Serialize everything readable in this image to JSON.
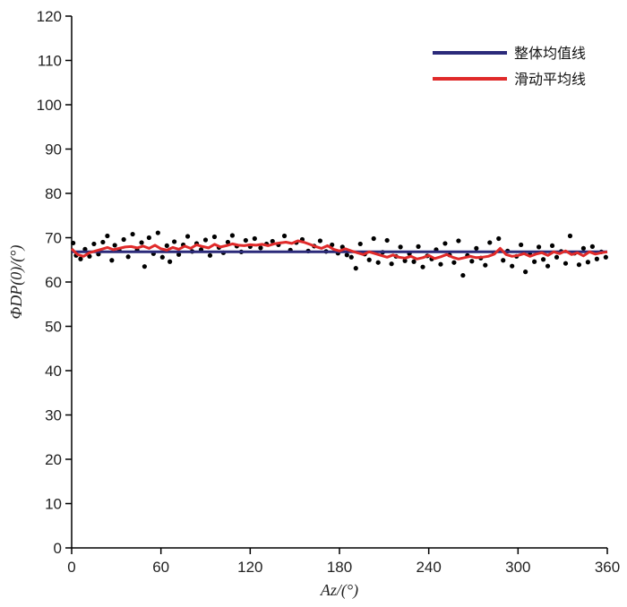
{
  "chart_data": {
    "type": "scatter",
    "title": "",
    "xlabel": "Az/(°)",
    "ylabel": "ΦDP(0)/(°)",
    "xlim": [
      0,
      360
    ],
    "ylim": [
      0,
      120
    ],
    "x_ticks": [
      0,
      60,
      120,
      180,
      240,
      300,
      360
    ],
    "y_ticks": [
      0,
      10,
      20,
      30,
      40,
      50,
      60,
      70,
      80,
      90,
      100,
      110,
      120
    ],
    "grid": false,
    "legend_position": "top-right",
    "colors": {
      "mean": "#2b2a7a",
      "moving": "#e02a2a",
      "points": "#000000"
    },
    "series": [
      {
        "name": "整体均值线",
        "kind": "line",
        "x": [
          0,
          360
        ],
        "y": [
          66.8,
          66.8
        ]
      },
      {
        "name": "滑动平均线",
        "kind": "line",
        "x": [
          0,
          4,
          8,
          12,
          16,
          20,
          24,
          28,
          32,
          36,
          40,
          44,
          48,
          52,
          56,
          60,
          64,
          68,
          72,
          76,
          80,
          84,
          88,
          92,
          96,
          100,
          104,
          108,
          112,
          116,
          120,
          124,
          128,
          132,
          136,
          140,
          144,
          148,
          152,
          156,
          160,
          164,
          168,
          172,
          176,
          180,
          184,
          188,
          192,
          196,
          200,
          204,
          208,
          212,
          216,
          220,
          224,
          228,
          232,
          236,
          240,
          244,
          248,
          252,
          256,
          260,
          264,
          268,
          272,
          276,
          280,
          284,
          288,
          292,
          296,
          300,
          304,
          308,
          312,
          316,
          320,
          324,
          328,
          332,
          336,
          340,
          344,
          348,
          352,
          356,
          360
        ],
        "y": [
          67.5,
          66.2,
          65.8,
          66.6,
          67.0,
          67.4,
          67.8,
          67.3,
          67.6,
          67.9,
          68.0,
          67.7,
          68.1,
          67.6,
          68.3,
          67.5,
          67.2,
          67.8,
          67.4,
          68.1,
          67.6,
          68.4,
          68.0,
          67.7,
          68.5,
          67.9,
          68.2,
          68.6,
          68.3,
          68.2,
          68.4,
          68.3,
          68.5,
          68.2,
          68.6,
          68.8,
          69.0,
          68.7,
          69.3,
          69.0,
          68.5,
          68.0,
          67.6,
          68.2,
          67.4,
          67.0,
          67.5,
          67.0,
          66.6,
          66.2,
          66.8,
          66.4,
          66.0,
          65.6,
          66.1,
          65.6,
          65.4,
          65.8,
          65.2,
          65.5,
          66.0,
          65.3,
          65.7,
          66.2,
          65.6,
          65.2,
          65.5,
          65.8,
          65.5,
          65.6,
          65.8,
          66.3,
          67.6,
          66.2,
          65.8,
          66.0,
          66.4,
          65.8,
          66.3,
          66.6,
          66.0,
          66.8,
          66.4,
          67.0,
          66.2,
          66.6,
          65.9,
          66.8,
          66.3,
          66.6,
          66.8
        ]
      },
      {
        "name": "",
        "kind": "scatter",
        "x": [
          1,
          3,
          6,
          9,
          12,
          15,
          18,
          21,
          24,
          27,
          29,
          32,
          35,
          38,
          41,
          44,
          47,
          49,
          52,
          55,
          58,
          61,
          64,
          66,
          69,
          72,
          75,
          78,
          81,
          84,
          87,
          90,
          93,
          96,
          99,
          102,
          105,
          108,
          111,
          114,
          117,
          120,
          123,
          127,
          131,
          135,
          139,
          143,
          147,
          151,
          155,
          159,
          163,
          167,
          171,
          175,
          179,
          182,
          185,
          188,
          191,
          194,
          197,
          200,
          203,
          206,
          209,
          212,
          215,
          218,
          221,
          224,
          227,
          230,
          233,
          236,
          239,
          242,
          245,
          248,
          251,
          254,
          257,
          260,
          263,
          266,
          269,
          272,
          275,
          278,
          281,
          284,
          287,
          290,
          293,
          296,
          299,
          302,
          305,
          308,
          311,
          314,
          317,
          320,
          323,
          326,
          329,
          332,
          335,
          338,
          341,
          344,
          347,
          350,
          353,
          356,
          359
        ],
        "y": [
          68.8,
          66.0,
          65.2,
          67.4,
          65.8,
          68.6,
          66.3,
          69.0,
          70.4,
          64.9,
          68.3,
          67.1,
          69.6,
          65.7,
          70.8,
          67.2,
          68.9,
          63.5,
          70.0,
          66.4,
          71.1,
          65.6,
          68.2,
          64.6,
          69.1,
          66.2,
          68.4,
          70.3,
          66.9,
          68.7,
          67.3,
          69.5,
          66.0,
          70.2,
          67.8,
          66.6,
          69.0,
          70.5,
          68.1,
          66.8,
          69.4,
          68.0,
          69.8,
          67.7,
          68.6,
          69.2,
          68.4,
          70.4,
          67.2,
          68.9,
          69.6,
          67.0,
          68.1,
          69.3,
          66.9,
          68.4,
          66.5,
          67.9,
          66.1,
          65.6,
          63.1,
          68.6,
          66.3,
          65.0,
          69.8,
          64.4,
          66.7,
          69.4,
          64.1,
          65.8,
          67.9,
          64.8,
          66.4,
          64.6,
          68.0,
          63.4,
          65.9,
          65.2,
          67.3,
          64.0,
          68.7,
          66.1,
          64.4,
          69.3,
          61.5,
          66.0,
          64.7,
          67.6,
          65.4,
          63.8,
          68.9,
          66.6,
          69.8,
          64.9,
          67.0,
          63.6,
          65.8,
          68.4,
          62.3,
          66.2,
          64.6,
          67.9,
          65.1,
          63.6,
          68.2,
          65.6,
          66.9,
          64.2,
          70.4,
          66.5,
          63.9,
          67.6,
          64.5,
          68.0,
          65.2,
          66.8,
          65.6
        ]
      }
    ]
  }
}
